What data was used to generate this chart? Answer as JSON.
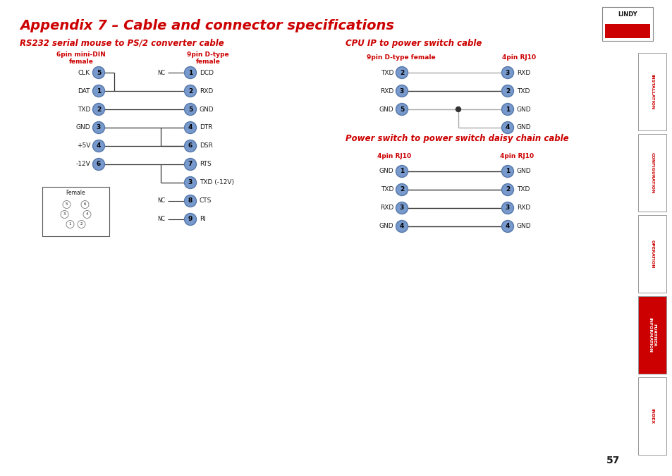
{
  "title": "Appendix 7 – Cable and connector specifications",
  "title_color": "#cc0000",
  "title_fontsize": 14,
  "bg_color": "#ffffff",
  "red_color": "#cc0000",
  "blue_circle_color": "#7799cc",
  "blue_circle_edge": "#5577aa",
  "rs232_subtitle": "RS232 serial mouse to PS/2 converter cable",
  "cpu_subtitle": "CPU IP to power switch cable",
  "daisy_subtitle": "Power switch to power switch daisy chain cable",
  "rs232_left_header1": "6pin mini-DIN",
  "rs232_left_header2": "female",
  "rs232_right_header1": "9pin D-type",
  "rs232_right_header2": "female",
  "cpu_left_header": "9pin D-type female",
  "cpu_right_header": "4pin RJ10",
  "daisy_left_header": "4pin RJ10",
  "daisy_right_header": "4pin RJ10",
  "page_number": "57",
  "sidebar_labels": [
    "INSTALLATION",
    "CONFIGURATION",
    "OPERATION",
    "FURTHER\nINFORMATION",
    "INDEX"
  ],
  "sidebar_active_idx": 3
}
